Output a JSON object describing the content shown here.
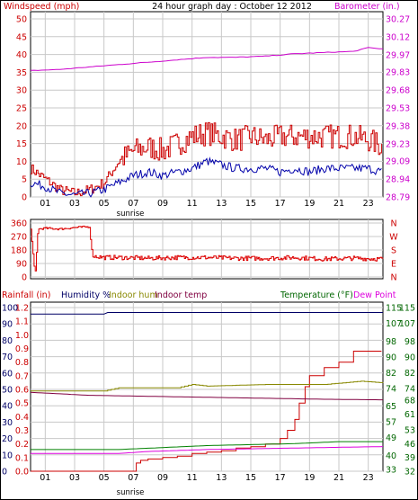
{
  "header": {
    "left_label": "Windspeed (mph)",
    "title": "24 hour graph day : October 12 2012",
    "right_label": "Barometer (in.)"
  },
  "panel3_header": {
    "rainfall": "Rainfall (in)",
    "humidity": "Humidity %",
    "indoor_hum": "Indoor hum",
    "indoor_temp": "Indoor temp",
    "temperature": "Temperature (°F)",
    "dew_point": "Dew Point"
  },
  "sunrise_label": "sunrise",
  "colors": {
    "windspeed": "#cc0000",
    "wind_avg": "#0000aa",
    "barometer": "#cc00cc",
    "direction": "#dd0000",
    "rainfall": "#cc0000",
    "humidity": "#000066",
    "indoor_hum": "#888800",
    "indoor_temp": "#800040",
    "temperature": "#008000",
    "dew_point": "#dd00dd",
    "grid": "#c8c8c8",
    "axis_red": "#cc0000",
    "axis_pink": "#cc00cc",
    "axis_green": "#006600"
  },
  "chart_data": [
    {
      "type": "line",
      "title": "24 hour graph day : October 12 2012",
      "ylabel": "Windspeed (mph)",
      "y2label": "Barometer (in.)",
      "x_ticks": [
        "01",
        "03",
        "05",
        "07",
        "09",
        "11",
        "13",
        "15",
        "17",
        "19",
        "21",
        "23"
      ],
      "y_ticks": [
        "0",
        "5",
        "10",
        "15",
        "20",
        "25",
        "30",
        "35",
        "40",
        "45",
        "50"
      ],
      "y2_ticks": [
        "28.79",
        "28.94",
        "29.09",
        "29.23",
        "29.38",
        "29.53",
        "29.68",
        "29.83",
        "29.97",
        "30.12",
        "30.27"
      ],
      "ylim": [
        0,
        50
      ],
      "y2lim": [
        28.79,
        30.27
      ],
      "series": [
        {
          "name": "Windspeed (mph)",
          "axis": "left",
          "x": [
            0,
            1,
            2,
            3,
            4,
            5,
            6,
            7,
            8,
            9,
            10,
            11,
            12,
            13,
            14,
            15,
            16,
            17,
            18,
            19,
            20,
            21,
            22,
            23,
            24
          ],
          "values": [
            8,
            5,
            2,
            1,
            2,
            4,
            10,
            13,
            14,
            13,
            15,
            17,
            18,
            17,
            16,
            17,
            16,
            17,
            17,
            17,
            17,
            17,
            17,
            16,
            14
          ]
        },
        {
          "name": "Wind average",
          "axis": "left",
          "x": [
            0,
            1,
            2,
            3,
            4,
            5,
            6,
            7,
            8,
            9,
            10,
            11,
            12,
            13,
            14,
            15,
            16,
            17,
            18,
            19,
            20,
            21,
            22,
            23,
            24
          ],
          "values": [
            4,
            3,
            1,
            0.5,
            1,
            2,
            4,
            6,
            7,
            6,
            7,
            8,
            10,
            9,
            8,
            8,
            8,
            7,
            8,
            7,
            8,
            8,
            8,
            8,
            7
          ]
        },
        {
          "name": "Barometer (in.)",
          "axis": "right",
          "x": [
            0,
            2,
            4,
            6,
            8,
            10,
            12,
            14,
            16,
            18,
            20,
            22,
            23,
            24
          ],
          "values": [
            29.84,
            29.85,
            29.87,
            29.89,
            29.91,
            29.93,
            29.95,
            29.95,
            29.96,
            29.98,
            29.99,
            30.0,
            30.03,
            30.02
          ]
        }
      ]
    },
    {
      "type": "line",
      "y_ticks": [
        "0",
        "90",
        "180",
        "270",
        "360"
      ],
      "y2_ticks": [
        "N",
        "W",
        "S",
        "E",
        "N"
      ],
      "ylim": [
        0,
        360
      ],
      "series": [
        {
          "name": "Wind direction",
          "x": [
            0,
            0.3,
            0.5,
            1,
            2,
            3,
            4,
            4.2,
            5,
            6,
            8,
            10,
            12,
            14,
            16,
            18,
            20,
            22,
            24
          ],
          "values": [
            320,
            10,
            320,
            325,
            320,
            330,
            335,
            140,
            130,
            130,
            125,
            130,
            130,
            125,
            125,
            130,
            120,
            125,
            120
          ]
        }
      ]
    },
    {
      "type": "line",
      "x_ticks": [
        "01",
        "03",
        "05",
        "07",
        "09",
        "11",
        "13",
        "15",
        "17",
        "19",
        "21",
        "23"
      ],
      "rain_ticks": [
        "0.0",
        "0.1",
        "0.2",
        "0.3",
        "0.4",
        "0.5",
        "0.6",
        "0.7",
        "0.8",
        "0.9",
        "1.0",
        "1.1",
        "1.2"
      ],
      "hum_ticks": [
        "0",
        "10",
        "20",
        "30",
        "40",
        "50",
        "60",
        "70",
        "80",
        "90",
        "100"
      ],
      "temp_ticks": [
        "32",
        "39",
        "46",
        "53",
        "61",
        "68",
        "74",
        "82",
        "90",
        "98",
        "107",
        "115"
      ],
      "temp_ticks_inner": [
        "33",
        "40",
        "49",
        "57",
        "65",
        "74",
        "82",
        "90",
        "98",
        "107",
        "115"
      ],
      "series": [
        {
          "name": "Rainfall (in)",
          "axis": "rain",
          "x": [
            0,
            6.9,
            7.2,
            7.5,
            8,
            9,
            10,
            11,
            12,
            13,
            14,
            15,
            16,
            17,
            17.5,
            18,
            18.3,
            18.7,
            19,
            20,
            21,
            22,
            23.9
          ],
          "values": [
            0,
            0,
            0.06,
            0.08,
            0.09,
            0.1,
            0.11,
            0.13,
            0.14,
            0.15,
            0.17,
            0.18,
            0.2,
            0.24,
            0.3,
            0.38,
            0.5,
            0.62,
            0.7,
            0.76,
            0.8,
            0.88,
            0.88
          ]
        },
        {
          "name": "Humidity %",
          "axis": "hum",
          "x": [
            0,
            5,
            5.2,
            24
          ],
          "values": [
            96,
            96,
            97,
            97
          ]
        },
        {
          "name": "Indoor hum",
          "axis": "hum",
          "x": [
            0,
            5,
            6,
            10,
            11,
            12,
            16,
            20,
            22.5,
            24
          ],
          "values": [
            49,
            49,
            51,
            51,
            53,
            52,
            53,
            53,
            55,
            54
          ]
        },
        {
          "name": "Indoor temp",
          "axis": "temp",
          "x": [
            0,
            4,
            8,
            12,
            16,
            20,
            24
          ],
          "values": [
            72,
            70.5,
            70,
            69.5,
            69,
            68.5,
            68.2
          ]
        },
        {
          "name": "Temperature (°F)",
          "axis": "temp",
          "x": [
            0,
            6,
            9,
            12,
            15,
            18,
            21,
            24
          ],
          "values": [
            43,
            43,
            44,
            45,
            45.5,
            46,
            47,
            47
          ]
        },
        {
          "name": "Dew Point",
          "axis": "temp",
          "x": [
            0,
            6,
            8,
            12,
            16,
            20,
            24
          ],
          "values": [
            41,
            41,
            42,
            43,
            43.5,
            44,
            44.5
          ]
        }
      ]
    }
  ]
}
